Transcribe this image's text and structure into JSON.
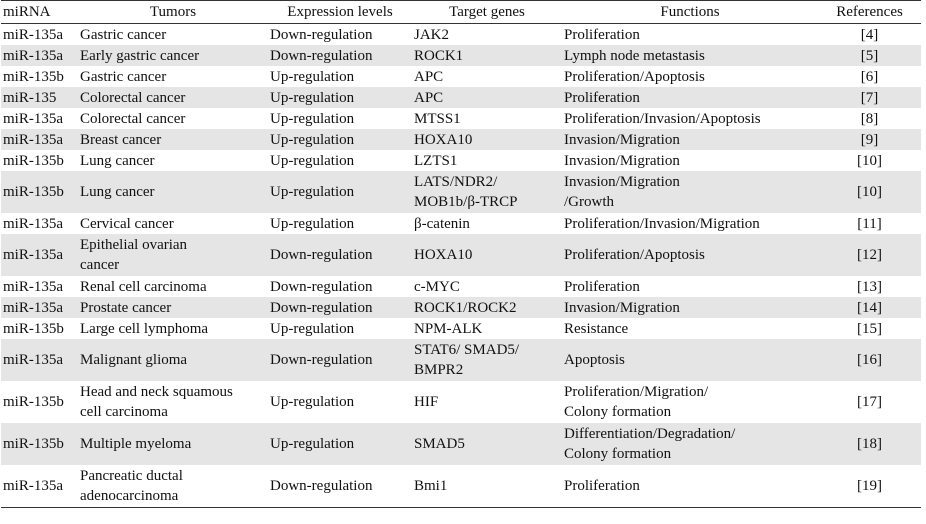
{
  "table": {
    "header": [
      "miRNA",
      "Tumors",
      "Expression levels",
      "Target genes",
      "Functions",
      "References"
    ],
    "rows": [
      [
        "miR-135a",
        "Gastric cancer",
        "Down-regulation",
        "JAK2",
        "Proliferation",
        "[4]"
      ],
      [
        "miR-135a",
        "Early gastric cancer",
        "Down-regulation",
        "ROCK1",
        "Lymph node metastasis",
        "[5]"
      ],
      [
        "miR-135b",
        "Gastric cancer",
        "Up-regulation",
        "APC",
        "Proliferation/Apoptosis",
        "[6]"
      ],
      [
        "miR-135",
        "Colorectal cancer",
        "Up-regulation",
        "APC",
        "Proliferation",
        "[7]"
      ],
      [
        "miR-135a",
        "Colorectal cancer",
        "Up-regulation",
        "MTSS1",
        "Proliferation/Invasion/Apoptosis",
        "[8]"
      ],
      [
        "miR-135a",
        "Breast cancer",
        "Up-regulation",
        "HOXA10",
        "Invasion/Migration",
        "[9]"
      ],
      [
        "miR-135b",
        "Lung cancer",
        "Up-regulation",
        "LZTS1",
        "Invasion/Migration",
        "[10]"
      ],
      [
        "miR-135b",
        "Lung cancer",
        "Up-regulation",
        "LATS/NDR2/\nMOB1b/β-TRCP",
        "Invasion/Migration\n/Growth",
        "[10]"
      ],
      [
        "miR-135a",
        "Cervical cancer",
        "Up-regulation",
        "β-catenin",
        "Proliferation/Invasion/Migration",
        "[11]"
      ],
      [
        "miR-135a",
        "Epithelial ovarian\ncancer",
        "Down-regulation",
        "HOXA10",
        "Proliferation/Apoptosis",
        "[12]"
      ],
      [
        "miR-135a",
        "Renal cell carcinoma",
        "Down-regulation",
        "c-MYC",
        "Proliferation",
        "[13]"
      ],
      [
        "miR-135a",
        "Prostate cancer",
        "Down-regulation",
        "ROCK1/ROCK2",
        "Invasion/Migration",
        "[14]"
      ],
      [
        "miR-135b",
        "Large cell lymphoma",
        "Up-regulation",
        "NPM-ALK",
        "Resistance",
        "[15]"
      ],
      [
        "miR-135a",
        "Malignant glioma",
        "Down-regulation",
        "STAT6/ SMAD5/\nBMPR2",
        "Apoptosis",
        "[16]"
      ],
      [
        "miR-135b",
        "Head and neck squamous\n cell carcinoma",
        "Up-regulation",
        "HIF",
        "Proliferation/Migration/\nColony formation",
        "[17]"
      ],
      [
        "miR-135b",
        "Multiple myeloma",
        "Up-regulation",
        "SMAD5",
        "Differentiation/Degradation/\nColony formation",
        "[18]"
      ],
      [
        "miR-135a",
        "Pancreatic ductal\n adenocarcinoma",
        "Down-regulation",
        "Bmi1",
        "Proliferation",
        "[19]"
      ]
    ]
  }
}
